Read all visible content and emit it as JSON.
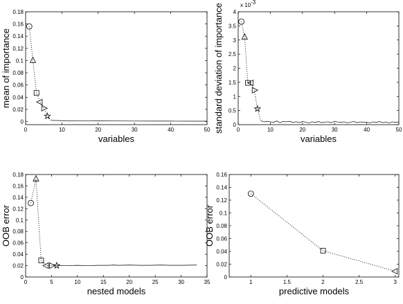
{
  "chart_data": [
    {
      "type": "line",
      "xlabel": "variables",
      "ylabel": "mean of importance",
      "xlim": [
        0,
        50
      ],
      "ylim": [
        -0.005,
        0.18
      ],
      "xticks": [
        0,
        10,
        20,
        30,
        40,
        50
      ],
      "yticks": [
        0,
        0.02,
        0.04,
        0.06,
        0.08,
        0.1,
        0.12,
        0.14,
        0.16,
        0.18
      ],
      "grid": false,
      "series": [
        {
          "marker": "line",
          "line_style": "dotted",
          "points": [
            [
              1,
              0.156
            ],
            [
              2,
              0.1
            ],
            [
              3,
              0.047
            ],
            [
              4,
              0.032
            ],
            [
              5,
              0.022
            ],
            [
              6,
              0.009
            ],
            [
              7,
              0.002
            ]
          ]
        },
        {
          "marker": "line",
          "line_style": "solid",
          "points": [
            [
              7,
              0.002
            ],
            [
              10,
              0.0015
            ],
            [
              15,
              0.0012
            ],
            [
              20,
              0.0011
            ],
            [
              25,
              0.001
            ],
            [
              30,
              0.0009
            ],
            [
              35,
              0.0008
            ],
            [
              40,
              0.0008
            ],
            [
              45,
              0.0007
            ],
            [
              50,
              0.0007
            ]
          ]
        },
        {
          "marker": "markers",
          "points": [
            [
              1,
              0.156,
              "circle"
            ],
            [
              2,
              0.1,
              "triangle-up"
            ],
            [
              3,
              0.047,
              "square"
            ],
            [
              4,
              0.032,
              "triangle-left"
            ],
            [
              5,
              0.022,
              "triangle-right"
            ],
            [
              6,
              0.009,
              "star"
            ]
          ]
        }
      ]
    },
    {
      "type": "line",
      "xlabel": "variables",
      "ylabel": "standard deviation of importance",
      "y_multiplier_base": "x 10",
      "y_multiplier_exp": "-3",
      "xlim": [
        0,
        50
      ],
      "ylim": [
        0,
        4
      ],
      "xticks": [
        0,
        10,
        20,
        30,
        40,
        50
      ],
      "yticks": [
        0,
        0.5,
        1,
        1.5,
        2,
        2.5,
        3,
        3.5,
        4
      ],
      "grid": false,
      "series": [
        {
          "marker": "line",
          "line_style": "dotted",
          "points": [
            [
              1,
              3.65
            ],
            [
              2,
              3.1
            ],
            [
              3,
              1.48
            ],
            [
              4,
              1.48
            ],
            [
              5,
              1.22
            ],
            [
              6,
              0.56
            ],
            [
              7,
              0.14
            ]
          ]
        },
        {
          "marker": "line",
          "line_style": "solid",
          "points": [
            [
              7,
              0.14
            ],
            [
              8,
              0.1
            ],
            [
              9,
              0.12
            ],
            [
              10,
              0.1
            ],
            [
              11,
              0.08
            ],
            [
              12,
              0.13
            ],
            [
              13,
              0.07
            ],
            [
              14,
              0.11
            ],
            [
              15,
              0.1
            ],
            [
              16,
              0.12
            ],
            [
              17,
              0.08
            ],
            [
              18,
              0.1
            ],
            [
              19,
              0.07
            ],
            [
              20,
              0.11
            ],
            [
              21,
              0.09
            ],
            [
              22,
              0.06
            ],
            [
              23,
              0.1
            ],
            [
              24,
              0.08
            ],
            [
              25,
              0.11
            ],
            [
              26,
              0.07
            ],
            [
              27,
              0.09
            ],
            [
              28,
              0.1
            ],
            [
              29,
              0.07
            ],
            [
              30,
              0.12
            ],
            [
              31,
              0.09
            ],
            [
              32,
              0.08
            ],
            [
              33,
              0.1
            ],
            [
              34,
              0.06
            ],
            [
              35,
              0.09
            ],
            [
              36,
              0.11
            ],
            [
              37,
              0.07
            ],
            [
              38,
              0.1
            ],
            [
              39,
              0.08
            ],
            [
              40,
              0.09
            ],
            [
              41,
              0.06
            ],
            [
              42,
              0.1
            ],
            [
              43,
              0.08
            ],
            [
              44,
              0.11
            ],
            [
              45,
              0.07
            ],
            [
              46,
              0.09
            ],
            [
              47,
              0.06
            ],
            [
              48,
              0.1
            ],
            [
              49,
              0.08
            ],
            [
              50,
              0.1
            ]
          ]
        },
        {
          "marker": "markers",
          "points": [
            [
              1,
              3.65,
              "circle"
            ],
            [
              2,
              3.1,
              "triangle-up"
            ],
            [
              3,
              1.48,
              "square"
            ],
            [
              4,
              1.48,
              "triangle-left"
            ],
            [
              5,
              1.22,
              "triangle-right"
            ],
            [
              6,
              0.56,
              "star"
            ]
          ]
        }
      ]
    },
    {
      "type": "line",
      "xlabel": "nested models",
      "ylabel": "OOB error",
      "xlim": [
        0,
        35
      ],
      "ylim": [
        0,
        0.18
      ],
      "xticks": [
        0,
        5,
        10,
        15,
        20,
        25,
        30,
        35
      ],
      "yticks": [
        0,
        0.02,
        0.04,
        0.06,
        0.08,
        0.1,
        0.12,
        0.14,
        0.16,
        0.18
      ],
      "grid": false,
      "series": [
        {
          "marker": "line",
          "line_style": "dotted",
          "points": [
            [
              1,
              0.13
            ],
            [
              2,
              0.172
            ],
            [
              3,
              0.029
            ],
            [
              4,
              0.02
            ],
            [
              5,
              0.02
            ],
            [
              6,
              0.02
            ]
          ]
        },
        {
          "marker": "line",
          "line_style": "solid",
          "points": [
            [
              6,
              0.02
            ],
            [
              8,
              0.02
            ],
            [
              10,
              0.0205
            ],
            [
              12,
              0.02
            ],
            [
              14,
              0.0205
            ],
            [
              16,
              0.0205
            ],
            [
              17,
              0.021
            ],
            [
              18,
              0.0205
            ],
            [
              20,
              0.021
            ],
            [
              22,
              0.0205
            ],
            [
              24,
              0.0205
            ],
            [
              26,
              0.021
            ],
            [
              28,
              0.0205
            ],
            [
              30,
              0.0205
            ],
            [
              33,
              0.021
            ]
          ]
        },
        {
          "marker": "markers",
          "points": [
            [
              1,
              0.13,
              "circle"
            ],
            [
              2,
              0.172,
              "triangle-up"
            ],
            [
              3,
              0.029,
              "square"
            ],
            [
              4,
              0.02,
              "triangle-left"
            ],
            [
              5,
              0.02,
              "triangle-right"
            ],
            [
              6,
              0.02,
              "star"
            ]
          ]
        }
      ]
    },
    {
      "type": "line",
      "xlabel": "predictive models",
      "ylabel": "OOB error",
      "xlim": [
        0.7,
        3.05
      ],
      "ylim": [
        0,
        0.16
      ],
      "xticks": [
        1,
        1.5,
        2,
        2.5,
        3
      ],
      "yticks": [
        0,
        0.02,
        0.04,
        0.06,
        0.08,
        0.1,
        0.12,
        0.14,
        0.16
      ],
      "grid": false,
      "series": [
        {
          "marker": "line",
          "line_style": "dotted",
          "points": [
            [
              1,
              0.13
            ],
            [
              2,
              0.041
            ],
            [
              3,
              0.009
            ]
          ]
        },
        {
          "marker": "markers",
          "points": [
            [
              1,
              0.13,
              "circle"
            ],
            [
              2,
              0.041,
              "square"
            ],
            [
              3,
              0.009,
              "triangle-left"
            ]
          ]
        }
      ]
    }
  ]
}
